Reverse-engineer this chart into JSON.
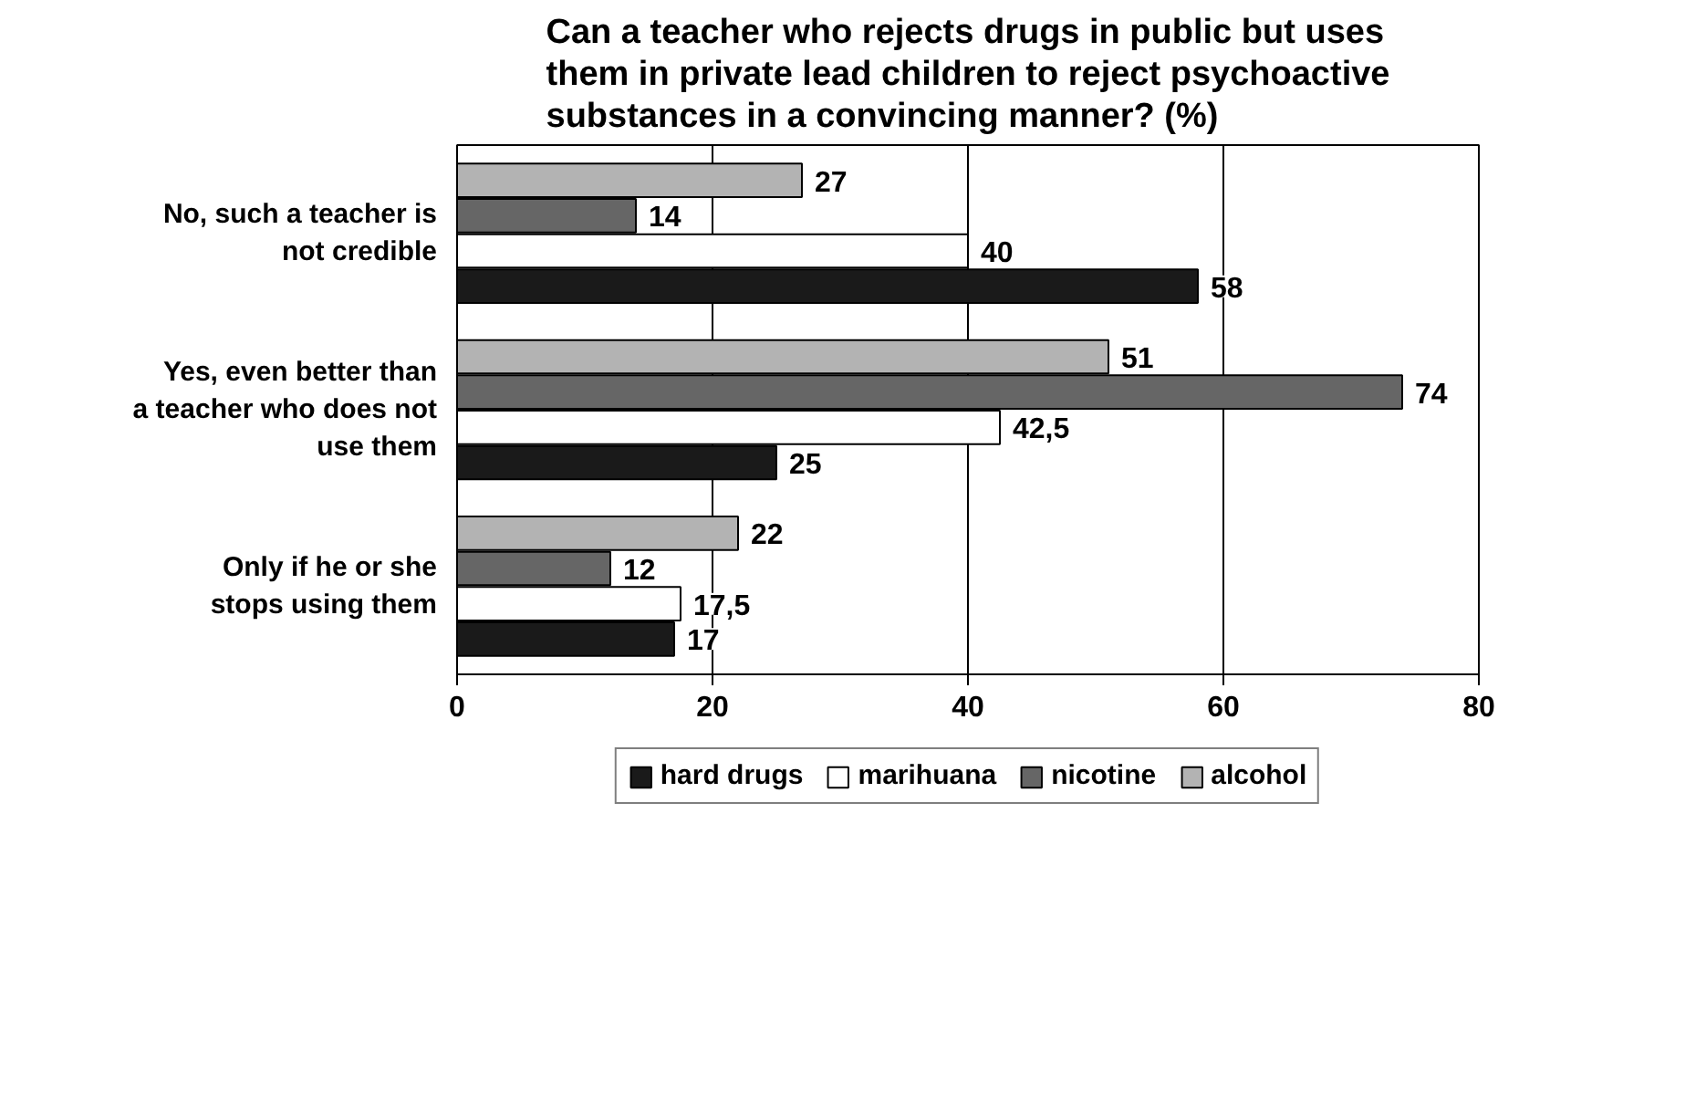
{
  "chart_data": {
    "type": "bar",
    "orientation": "horizontal",
    "title": "Can a teacher who rejects drugs in public but uses them in private lead children to reject psychoactive substances in a convincing manner? (%)",
    "categories": [
      "No, such a teacher is not credible",
      "Yes, even better than a teacher who does not use them",
      "Only if he or she stops using them"
    ],
    "series": [
      {
        "name": "hard drugs",
        "color": "#1a1a1a",
        "values": [
          58,
          25,
          17
        ],
        "value_labels": [
          "58",
          "25",
          "17"
        ]
      },
      {
        "name": "marihuana",
        "color": "#ffffff",
        "values": [
          40,
          42.5,
          17.5
        ],
        "value_labels": [
          "40",
          "42,5",
          "17,5"
        ]
      },
      {
        "name": "nicotine",
        "color": "#666666",
        "values": [
          14,
          74,
          12
        ],
        "value_labels": [
          "14",
          "74",
          "12"
        ]
      },
      {
        "name": "alcohol",
        "color": "#b3b3b3",
        "values": [
          27,
          51,
          22
        ],
        "value_labels": [
          "27",
          "51",
          "22"
        ]
      }
    ],
    "xlim": [
      0,
      80
    ],
    "xticks": [
      0,
      20,
      40,
      60,
      80
    ],
    "grid": "x",
    "legend": "bottom"
  }
}
